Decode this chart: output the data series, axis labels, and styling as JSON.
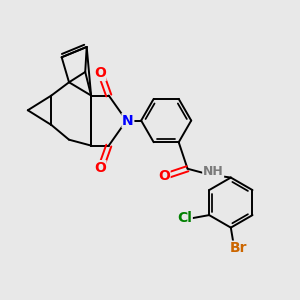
{
  "background_color": "#e8e8e8",
  "bond_color": "#000000",
  "bond_width": 1.4,
  "atom_colors": {
    "O": "#ff0000",
    "N": "#0000ff",
    "Cl": "#008000",
    "Br": "#cc6600",
    "H": "#7a7a7a",
    "C": "#000000"
  }
}
